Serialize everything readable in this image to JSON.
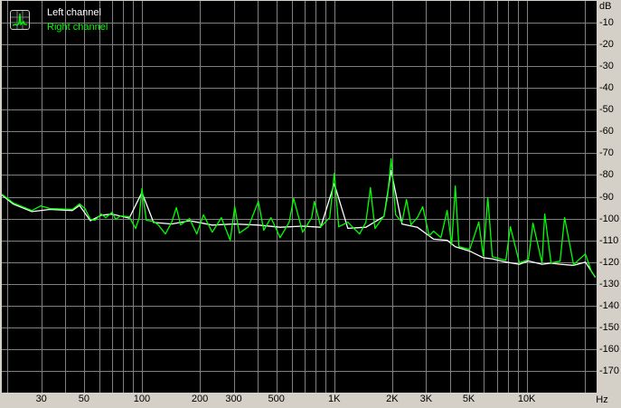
{
  "chart_data": {
    "type": "line",
    "title": "",
    "xlabel": "Hz",
    "ylabel": "dB",
    "xscale": "log",
    "xlim": [
      18.7,
      23100
    ],
    "ylim": [
      -180,
      0
    ],
    "grid": true,
    "legend_position": "top-left",
    "background": "#000000",
    "x_tick_labels": [
      {
        "value": 30,
        "label": "30"
      },
      {
        "value": 50,
        "label": "50"
      },
      {
        "value": 100,
        "label": "100"
      },
      {
        "value": 200,
        "label": "200"
      },
      {
        "value": 300,
        "label": "300"
      },
      {
        "value": 500,
        "label": "500"
      },
      {
        "value": 1000,
        "label": "1K"
      },
      {
        "value": 2000,
        "label": "2K"
      },
      {
        "value": 3000,
        "label": "3K"
      },
      {
        "value": 5000,
        "label": "5K"
      },
      {
        "value": 10000,
        "label": "10K"
      }
    ],
    "y_tick_labels": [
      "-10",
      "-20",
      "-30",
      "-40",
      "-50",
      "-60",
      "-70",
      "-80",
      "-90",
      "-100",
      "-110",
      "-120",
      "-130",
      "-140",
      "-150",
      "-160",
      "-170"
    ],
    "series": [
      {
        "name": "Left channel",
        "color": "#ffffff",
        "x": [
          18.7,
          21.5,
          26.8,
          33.2,
          43.5,
          47.4,
          54,
          61.5,
          70,
          86,
          100,
          115,
          143,
          177,
          232,
          304,
          403,
          523,
          685,
          850,
          1000,
          1176,
          1460,
          1813,
          1976,
          2250,
          2703,
          3285,
          3864,
          4258,
          5061,
          5951,
          6631,
          7798,
          9170,
          10217,
          12020,
          13393,
          14920,
          17544,
          20196,
          22749
        ],
        "y": [
          -89.2,
          -93.4,
          -96.8,
          -95.8,
          -96.3,
          -94,
          -101,
          -98.5,
          -98,
          -99.8,
          -88,
          -101.8,
          -102.5,
          -101,
          -103,
          -102.5,
          -103,
          -104,
          -103.5,
          -104,
          -84,
          -104.5,
          -104,
          -99,
          -78,
          -102.5,
          -104,
          -109.5,
          -110,
          -113,
          -115,
          -118,
          -118.5,
          -120,
          -121,
          -119.5,
          -121,
          -120.5,
          -121,
          -121.5,
          -120,
          -127
        ]
      },
      {
        "name": "Right channel",
        "color": "#00ff00",
        "x": [
          18.7,
          21.5,
          26.8,
          29.8,
          33.2,
          43.5,
          47.4,
          50.6,
          54,
          57,
          61.5,
          64.9,
          70,
          73.1,
          77.2,
          86,
          92.7,
          96.8,
          100,
          105.5,
          115,
          121.5,
          132.5,
          143,
          151,
          159,
          177,
          193,
          209,
          232,
          259,
          288,
          304,
          321,
          358,
          403,
          430,
          469,
          523,
          583,
          615,
          685,
          763,
          788,
          850,
          947,
          1000,
          1055,
          1176,
          1241,
          1354,
          1460,
          1541,
          1627,
          1813,
          1892,
          1976,
          2086,
          2250,
          2375,
          2506,
          2703,
          2884,
          3112,
          3285,
          3581,
          3864,
          4077,
          4258,
          4446,
          5061,
          5640,
          5951,
          6283,
          6631,
          7798,
          8233,
          9170,
          10217,
          10787,
          12020,
          12412,
          13393,
          14920,
          15750,
          17544,
          18521,
          20196,
          21777,
          22749
        ],
        "y": [
          -88.8,
          -92.9,
          -96.3,
          -94.2,
          -95.4,
          -95.8,
          -93.3,
          -95.4,
          -100.4,
          -100.8,
          -97.9,
          -99.6,
          -97.1,
          -100.4,
          -98.8,
          -99.2,
          -104.6,
          -99.6,
          -86.3,
          -100.8,
          -101.3,
          -102.9,
          -107.1,
          -101.7,
          -95,
          -102.9,
          -100,
          -107.1,
          -98.3,
          -106.3,
          -99.6,
          -110,
          -94.6,
          -106.7,
          -103.8,
          -92.1,
          -105.4,
          -99.6,
          -108.8,
          -101.7,
          -90.8,
          -106.3,
          -99.6,
          -92.1,
          -103.8,
          -99.6,
          -79.2,
          -103.8,
          -101.7,
          -103.8,
          -107.1,
          -101.7,
          -85.8,
          -104.6,
          -98.8,
          -90,
          -72.5,
          -98.3,
          -101.7,
          -91.3,
          -102.9,
          -99.6,
          -94.6,
          -107.9,
          -105.8,
          -108.8,
          -96.3,
          -112.1,
          -85,
          -112.9,
          -114.2,
          -101.7,
          -117.1,
          -90.4,
          -117.5,
          -119.2,
          -103.8,
          -120.4,
          -118.8,
          -102.1,
          -120.4,
          -97.9,
          -120.4,
          -119.6,
          -99.6,
          -121.3,
          -119.2,
          -116.3,
          -124.6,
          -126.7
        ]
      }
    ]
  }
}
